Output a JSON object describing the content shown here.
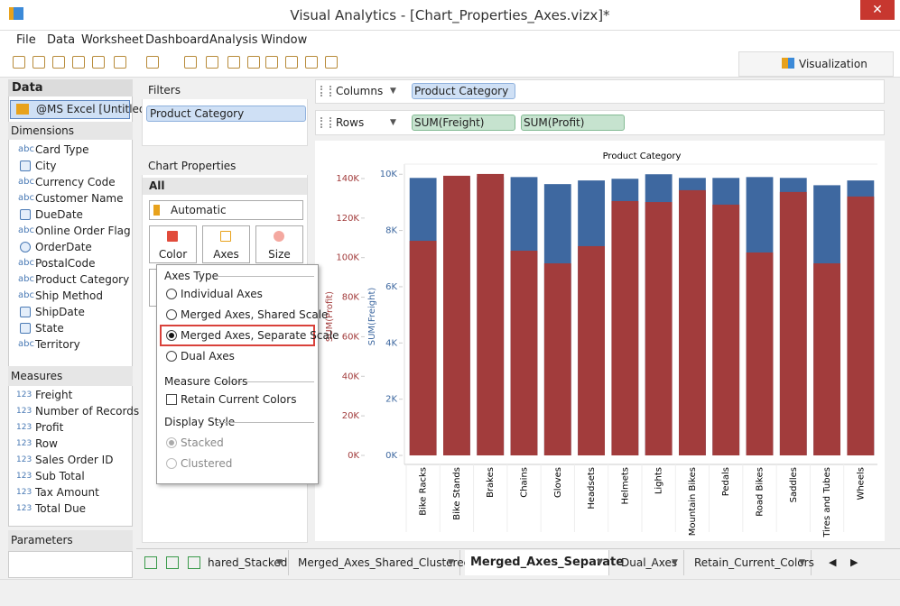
{
  "window": {
    "title": "Visual Analytics - [Chart_Properties_Axes.vizx]*"
  },
  "menu": [
    "File",
    "Data",
    "Worksheet",
    "Dashboard",
    "Analysis",
    "Window"
  ],
  "toolbar": {
    "tab": "Visualization"
  },
  "data_panel": {
    "title": "Data",
    "source": "@MS Excel [Untitled]",
    "dimensions_title": "Dimensions",
    "dimensions": [
      {
        "icon": "abc",
        "name": "Card Type"
      },
      {
        "name": "City"
      },
      {
        "icon": "abc",
        "name": "Currency Code"
      },
      {
        "icon": "abc",
        "name": "Customer Name"
      },
      {
        "name": "DueDate"
      },
      {
        "icon": "abc",
        "name": "Online Order Flag"
      },
      {
        "name": "OrderDate"
      },
      {
        "icon": "abc",
        "name": "PostalCode"
      },
      {
        "icon": "abc",
        "name": "Product Category"
      },
      {
        "icon": "abc",
        "name": "Ship Method"
      },
      {
        "name": "ShipDate"
      },
      {
        "name": "State"
      },
      {
        "icon": "abc",
        "name": "Territory"
      }
    ],
    "measures_title": "Measures",
    "measures": [
      {
        "icon": "123",
        "name": "Freight"
      },
      {
        "icon": "123",
        "name": "Number of Records"
      },
      {
        "icon": "123",
        "name": "Profit"
      },
      {
        "icon": "123",
        "name": "Row"
      },
      {
        "icon": "123",
        "name": "Sales Order ID"
      },
      {
        "icon": "123",
        "name": "Sub Total"
      },
      {
        "icon": "123",
        "name": "Tax Amount"
      },
      {
        "icon": "123",
        "name": "Total Due"
      }
    ],
    "parameters_title": "Parameters"
  },
  "filters": {
    "title": "Filters",
    "items": [
      "Product Category"
    ]
  },
  "chart_properties": {
    "title": "Chart Properties",
    "scope": "All",
    "chart_type": "Automatic",
    "buttons": [
      "Color",
      "Axes",
      "Size"
    ]
  },
  "axes_popup": {
    "axes_type_title": "Axes Type",
    "options": [
      {
        "label": "Individual Axes",
        "selected": false
      },
      {
        "label": "Merged Axes, Shared Scale",
        "selected": false
      },
      {
        "label": "Merged Axes, Separate Scale",
        "selected": true
      },
      {
        "label": "Dual Axes",
        "selected": false
      }
    ],
    "measure_colors_title": "Measure Colors",
    "retain": {
      "label": "Retain Current Colors",
      "checked": false
    },
    "display_style_title": "Display Style",
    "styles": [
      {
        "label": "Stacked",
        "selected": true
      },
      {
        "label": "Clustered",
        "selected": false
      }
    ]
  },
  "shelves": {
    "columns_label": "Columns",
    "columns": [
      "Product Category"
    ],
    "rows_label": "Rows",
    "rows": [
      "SUM(Freight)",
      "SUM(Profit)"
    ]
  },
  "chart_data": {
    "type": "bar",
    "title": "Product Category",
    "ylabel": "SUM(Profit)",
    "y2label": "SUM(Freight)",
    "categories": [
      "Bike Racks",
      "Bike Stands",
      "Brakes",
      "Chains",
      "Gloves",
      "Headsets",
      "Helmets",
      "Lights",
      "Mountain Bikes",
      "Pedals",
      "Road Bikes",
      "Saddles",
      "Tires and Tubes",
      "Wheels"
    ],
    "series": [
      {
        "color": "#3e68a0",
        "axis": "y2",
        "values": [
          9870,
          9900,
          9900,
          9900,
          9650,
          9780,
          9840,
          10000,
          9870,
          9870,
          9900,
          9870,
          9610,
          9780
        ]
      },
      {
        "color": "#a23c3c",
        "values": [
          108500,
          141400,
          142300,
          103500,
          97100,
          105800,
          128600,
          128100,
          134100,
          126800,
          102600,
          133200,
          97100,
          130900
        ]
      }
    ],
    "ylim": [
      0,
      145000
    ],
    "yticks": [
      {
        "value": 0,
        "label": "0K"
      },
      {
        "value": 20000,
        "label": "20K"
      },
      {
        "value": 40000,
        "label": "40K"
      },
      {
        "value": 60000,
        "label": "60K"
      },
      {
        "value": 80000,
        "label": "80K"
      },
      {
        "value": 100000,
        "label": "100K"
      },
      {
        "value": 120000,
        "label": "120K"
      },
      {
        "value": 140000,
        "label": "140K"
      }
    ],
    "y2lim": [
      0,
      10200
    ],
    "y2ticks": [
      {
        "value": 0,
        "label": "0K"
      },
      {
        "value": 2000,
        "label": "2K"
      },
      {
        "value": 4000,
        "label": "4K"
      },
      {
        "value": 6000,
        "label": "6K"
      },
      {
        "value": 8000,
        "label": "8K"
      },
      {
        "value": 10000,
        "label": "10K"
      }
    ]
  },
  "sheet_tabs": {
    "tabs": [
      "hared_Stacked",
      "Merged_Axes_Shared_Clustered",
      "Merged_Axes_Separate",
      "Dual_Axes",
      "Retain_Current_Colors"
    ],
    "active": 2
  }
}
